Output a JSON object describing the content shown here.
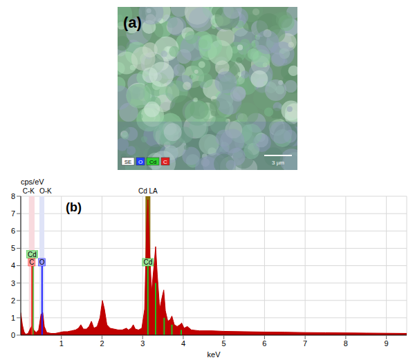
{
  "panel_a": {
    "panel_label": "(a)",
    "legend": [
      {
        "label": "SE",
        "color": "#ffffff"
      },
      {
        "label": "O",
        "color": "#2040ff"
      },
      {
        "label": "Cd",
        "color": "#30d030"
      },
      {
        "label": "C",
        "color": "#e02020"
      }
    ],
    "scale_bar": "3 µm"
  },
  "chart_data": {
    "type": "area",
    "panel_label": "(b)",
    "color": "#c00000",
    "x_label": "keV",
    "y_label": "cps/eV",
    "xlim": [
      0,
      9.5
    ],
    "xticks": [
      1,
      2,
      3,
      4,
      5,
      6,
      7,
      8,
      9
    ],
    "ylim": [
      0,
      8
    ],
    "yticks": [
      0,
      1,
      2,
      3,
      4,
      5,
      6,
      7,
      8
    ],
    "grid": true,
    "x": [
      0.0,
      0.04,
      0.08,
      0.12,
      0.18,
      0.24,
      0.28,
      0.32,
      0.38,
      0.44,
      0.5,
      0.54,
      0.58,
      0.64,
      0.75,
      0.85,
      0.95,
      1.05,
      1.15,
      1.25,
      1.35,
      1.42,
      1.48,
      1.54,
      1.62,
      1.68,
      1.74,
      1.8,
      1.88,
      1.95,
      2.01,
      2.06,
      2.12,
      2.2,
      2.3,
      2.4,
      2.5,
      2.6,
      2.65,
      2.72,
      2.77,
      2.82,
      2.9,
      2.98,
      3.05,
      3.1,
      3.13,
      3.17,
      3.22,
      3.28,
      3.32,
      3.36,
      3.42,
      3.48,
      3.52,
      3.56,
      3.62,
      3.68,
      3.72,
      3.78,
      3.85,
      3.92,
      3.96,
      4.02,
      4.1,
      4.2,
      4.4,
      4.7,
      5.0,
      5.5,
      6.0,
      6.5,
      7.0,
      7.5,
      8.0,
      8.5,
      9.0,
      9.5
    ],
    "values": [
      1.3,
      0.6,
      0.2,
      0.05,
      0.1,
      0.4,
      0.55,
      0.3,
      0.15,
      0.3,
      1.2,
      1.3,
      0.5,
      0.15,
      0.1,
      0.1,
      0.15,
      0.2,
      0.2,
      0.25,
      0.3,
      0.4,
      0.6,
      0.35,
      0.35,
      0.5,
      0.8,
      0.4,
      0.5,
      1.0,
      2.0,
      1.5,
      0.6,
      0.4,
      0.35,
      0.3,
      0.3,
      0.4,
      0.3,
      0.4,
      0.6,
      0.35,
      0.3,
      0.4,
      1.5,
      6.5,
      7.8,
      5.0,
      2.5,
      4.0,
      5.1,
      3.5,
      1.5,
      2.2,
      2.6,
      1.4,
      0.8,
      0.9,
      1.1,
      0.6,
      0.5,
      0.6,
      0.7,
      0.4,
      0.5,
      0.3,
      0.25,
      0.25,
      0.22,
      0.2,
      0.18,
      0.17,
      0.15,
      0.14,
      0.13,
      0.12,
      0.11,
      0.1
    ],
    "regions": [
      {
        "label": "C-K",
        "x": [
          0.2,
          0.34
        ],
        "color": "#f8dade"
      },
      {
        "label": "O-K",
        "x": [
          0.46,
          0.58
        ],
        "color": "#dfe3f7"
      },
      {
        "label": "Cd LA",
        "x": [
          3.07,
          3.19
        ],
        "color": "#8a6d0b"
      }
    ],
    "element_lines": [
      {
        "name": "Cd",
        "color": "#20c020",
        "x": [
          0.3,
          3.13,
          3.32,
          3.53,
          3.72,
          3.95
        ],
        "heights": [
          4.0,
          4.2,
          3.0,
          1.0,
          0.6,
          0.3
        ],
        "tags": [
          {
            "x": 0.28,
            "y": 4.65
          },
          {
            "x": 3.13,
            "y": 4.2
          }
        ]
      },
      {
        "name": "C",
        "color": "#ff2020",
        "x": [
          0.277
        ],
        "heights": [
          4.0
        ],
        "tags": [
          {
            "x": 0.27,
            "y": 4.2
          }
        ]
      },
      {
        "name": "O",
        "color": "#2020ff",
        "x": [
          0.525
        ],
        "heights": [
          4.0
        ],
        "tags": [
          {
            "x": 0.52,
            "y": 4.2
          }
        ]
      }
    ]
  }
}
